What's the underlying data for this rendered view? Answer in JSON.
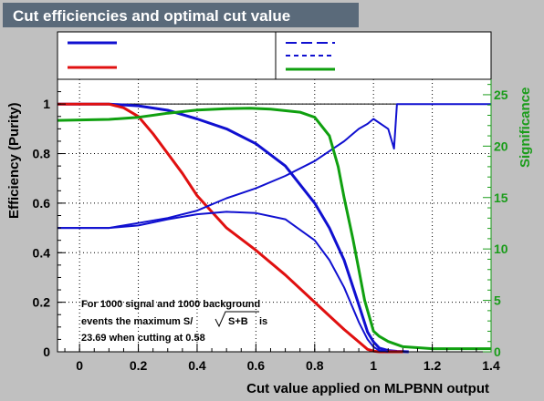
{
  "chart_data": {
    "type": "line",
    "title": "Cut efficiencies and optimal cut value",
    "xlabel": "Cut value applied on MLPBNN output",
    "ylabel": "Efficiency (Purity)",
    "y2label": "Significance",
    "xlim": [
      -0.075,
      1.4
    ],
    "ylim": [
      0,
      1.1
    ],
    "y2lim": [
      0,
      26.5
    ],
    "xticks": [
      "0",
      "0.2",
      "0.4",
      "0.6",
      "0.8",
      "1",
      "1.2",
      "1.4"
    ],
    "yticks": [
      "0",
      "0.2",
      "0.4",
      "0.6",
      "0.8",
      "1"
    ],
    "y2ticks": [
      "0",
      "5",
      "10",
      "15",
      "20",
      "25"
    ],
    "grid": true,
    "legend_placement": "top",
    "reference_line_y": 1.0,
    "annotation": [
      "For 1000 signal and 1000 background",
      "events the maximum S/",
      "S+B",
      "is",
      "23.69 when cutting at  0.58"
    ],
    "colors": {
      "signal": "#1010d0",
      "background": "#e01010",
      "significance": "#10a010",
      "right_axis": "#1a9c1a"
    },
    "series": [
      {
        "color": "#1010d0",
        "style": "solid",
        "axis": "left",
        "x": [
          -0.075,
          0.1,
          0.2,
          0.3,
          0.4,
          0.5,
          0.6,
          0.7,
          0.8,
          0.85,
          0.9,
          0.95,
          0.98,
          1.0,
          1.02,
          1.05,
          1.08,
          1.12
        ],
        "y": [
          1.0,
          1.0,
          0.993,
          0.975,
          0.94,
          0.9,
          0.84,
          0.75,
          0.6,
          0.5,
          0.37,
          0.19,
          0.08,
          0.04,
          0.015,
          0.005,
          0.002,
          0.0
        ]
      },
      {
        "color": "#e01010",
        "style": "solid",
        "axis": "left",
        "x": [
          -0.075,
          0.1,
          0.15,
          0.2,
          0.25,
          0.3,
          0.35,
          0.4,
          0.5,
          0.6,
          0.7,
          0.8,
          0.85,
          0.9,
          0.95,
          0.98,
          1.0,
          1.02,
          1.1
        ],
        "y": [
          1.0,
          1.0,
          0.985,
          0.95,
          0.88,
          0.8,
          0.72,
          0.63,
          0.5,
          0.41,
          0.31,
          0.2,
          0.145,
          0.09,
          0.04,
          0.01,
          0.003,
          0.0,
          0.0
        ]
      },
      {
        "color": "#1010d0",
        "style": "dashed",
        "axis": "left",
        "x": [
          -0.075,
          0.1,
          0.2,
          0.3,
          0.4,
          0.5,
          0.6,
          0.7,
          0.8,
          0.85,
          0.9,
          0.95,
          0.98,
          1.0,
          1.05,
          1.07,
          1.08,
          1.4
        ],
        "y": [
          0.5,
          0.5,
          0.52,
          0.54,
          0.57,
          0.62,
          0.66,
          0.71,
          0.77,
          0.81,
          0.85,
          0.9,
          0.92,
          0.94,
          0.9,
          0.82,
          1.0,
          1.0
        ]
      },
      {
        "color": "#1010d0",
        "style": "dotted",
        "axis": "left",
        "x": [
          -0.075,
          0.1,
          0.2,
          0.3,
          0.4,
          0.5,
          0.6,
          0.7,
          0.8,
          0.85,
          0.9,
          0.95,
          0.98,
          1.0,
          1.02,
          1.05
        ],
        "y": [
          0.5,
          0.5,
          0.51,
          0.535,
          0.555,
          0.565,
          0.56,
          0.535,
          0.45,
          0.37,
          0.26,
          0.12,
          0.05,
          0.02,
          0.005,
          0.0
        ]
      },
      {
        "color": "#10a010",
        "style": "solid",
        "axis": "right",
        "x": [
          -0.075,
          0.1,
          0.2,
          0.3,
          0.4,
          0.5,
          0.58,
          0.65,
          0.75,
          0.8,
          0.85,
          0.88,
          0.9,
          0.93,
          0.95,
          0.97,
          0.99,
          1.0,
          1.02,
          1.05,
          1.1,
          1.2,
          1.4
        ],
        "y": [
          22.5,
          22.6,
          22.8,
          23.2,
          23.5,
          23.65,
          23.69,
          23.6,
          23.3,
          22.8,
          21.0,
          18.0,
          15.0,
          11.0,
          8.0,
          5.0,
          3.0,
          2.0,
          1.5,
          1.0,
          0.5,
          0.3,
          0.3
        ]
      }
    ]
  }
}
